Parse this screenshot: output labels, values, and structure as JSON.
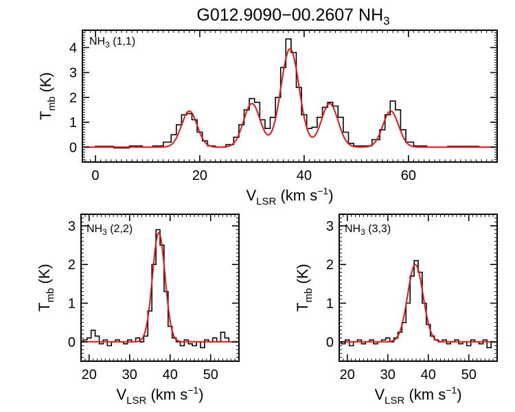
{
  "figure": {
    "title": "G012.9090−00.2607 NH",
    "title_sub": "3"
  },
  "chart_data": [
    {
      "type": "line",
      "id": "p11",
      "label": "NH",
      "label_sub": "3",
      "label_suffix": " (1,1)",
      "xlabel": "V",
      "xlabel_sub": "LSR",
      "xlabel_unit": " (km s",
      "xlabel_sup": "−1",
      "ylabel": "T",
      "ylabel_sub": "mb",
      "ylabel_unit": " (K)",
      "xlim": [
        -2.5,
        77
      ],
      "ylim": [
        -0.6,
        4.7
      ],
      "xticks": [
        0,
        20,
        40,
        60
      ],
      "yticks": [
        0,
        1,
        2,
        3,
        4
      ],
      "dense_ticks": true,
      "series": [
        {
          "kind": "observed",
          "color": "#000000",
          "x": [
            -2,
            2,
            5,
            8,
            10,
            12,
            14,
            15,
            16,
            17,
            18,
            19,
            20,
            21,
            22,
            24,
            26,
            27,
            28,
            29,
            30,
            31,
            32,
            33,
            34,
            35,
            36,
            37,
            38,
            39,
            40,
            41,
            42,
            43,
            44,
            45,
            46,
            47,
            48,
            49,
            50,
            52,
            54,
            55,
            56,
            57,
            58,
            59,
            60,
            62,
            65,
            70,
            77
          ],
          "y": [
            0.0,
            0.03,
            -0.03,
            0.05,
            0.0,
            0.05,
            0.2,
            0.5,
            0.9,
            1.3,
            1.35,
            1.1,
            0.6,
            0.25,
            0.05,
            0.0,
            0.1,
            0.4,
            0.9,
            1.5,
            1.95,
            1.8,
            1.1,
            0.75,
            1.2,
            2.0,
            3.2,
            4.35,
            3.8,
            2.4,
            1.3,
            0.75,
            0.8,
            1.2,
            1.6,
            1.8,
            1.65,
            1.2,
            0.6,
            0.15,
            0.05,
            0.05,
            0.3,
            0.7,
            1.3,
            1.85,
            1.5,
            0.7,
            0.2,
            0.05,
            0.0,
            0.03,
            0.0
          ]
        },
        {
          "kind": "fit",
          "color": "#ee1111",
          "baseline": 0.0,
          "components": [
            {
              "center": 18.0,
              "amplitude": 1.45,
              "sigma": 1.5
            },
            {
              "center": 30.0,
              "amplitude": 1.75,
              "sigma": 1.6
            },
            {
              "center": 37.3,
              "amplitude": 3.95,
              "sigma": 1.75
            },
            {
              "center": 44.9,
              "amplitude": 1.75,
              "sigma": 1.6
            },
            {
              "center": 56.6,
              "amplitude": 1.45,
              "sigma": 1.5
            }
          ]
        }
      ]
    },
    {
      "type": "line",
      "id": "p22",
      "label": "NH",
      "label_sub": "3",
      "label_suffix": " (2,2)",
      "xlabel": "V",
      "xlabel_sub": "LSR",
      "xlabel_unit": " (km s",
      "xlabel_sup": "−1",
      "ylabel": "T",
      "ylabel_sub": "mb",
      "ylabel_unit": " (K)",
      "xlim": [
        18,
        57
      ],
      "ylim": [
        -0.5,
        3.3
      ],
      "xticks": [
        20,
        30,
        40,
        50
      ],
      "yticks": [
        0,
        1,
        2,
        3
      ],
      "dense_ticks": true,
      "series": [
        {
          "kind": "observed",
          "color": "#000000",
          "x": [
            18,
            19,
            20,
            21,
            22,
            23,
            24,
            25,
            26,
            27,
            28,
            29,
            30,
            31,
            32,
            33,
            34,
            35,
            36,
            37,
            38,
            39,
            40,
            41,
            42,
            43,
            44,
            45,
            46,
            47,
            48,
            49,
            50,
            51,
            52,
            53,
            54,
            55,
            56,
            57
          ],
          "y": [
            0.0,
            0.05,
            0.1,
            0.3,
            0.15,
            -0.05,
            0.05,
            -0.1,
            0.0,
            0.05,
            0.0,
            -0.05,
            0.05,
            0.0,
            0.1,
            0.0,
            0.15,
            0.8,
            2.0,
            2.9,
            2.5,
            1.3,
            0.4,
            0.1,
            0.0,
            -0.1,
            0.05,
            -0.05,
            -0.1,
            0.0,
            -0.15,
            0.05,
            0.0,
            0.1,
            0.0,
            0.25,
            0.1,
            0.0,
            0.0,
            0.0
          ]
        },
        {
          "kind": "fit",
          "color": "#ee1111",
          "baseline": 0.0,
          "components": [
            {
              "center": 37.2,
              "amplitude": 2.82,
              "sigma": 1.55
            }
          ]
        }
      ]
    },
    {
      "type": "line",
      "id": "p33",
      "label": "NH",
      "label_sub": "3",
      "label_suffix": " (3,3)",
      "xlabel": "V",
      "xlabel_sub": "LSR",
      "xlabel_unit": " (km s",
      "xlabel_sup": "−1",
      "ylabel": "T",
      "ylabel_sub": "mb",
      "ylabel_unit": " (K)",
      "xlim": [
        18,
        57
      ],
      "ylim": [
        -0.5,
        3.3
      ],
      "xticks": [
        20,
        30,
        40,
        50
      ],
      "yticks": [
        0,
        1,
        2,
        3
      ],
      "dense_ticks": true,
      "series": [
        {
          "kind": "observed",
          "color": "#000000",
          "x": [
            18,
            19,
            20,
            21,
            22,
            23,
            24,
            25,
            26,
            27,
            28,
            29,
            30,
            31,
            32,
            33,
            34,
            35,
            36,
            37,
            38,
            39,
            40,
            41,
            42,
            43,
            44,
            45,
            46,
            47,
            48,
            49,
            50,
            51,
            52,
            53,
            54,
            55,
            56,
            57
          ],
          "y": [
            0.0,
            -0.05,
            0.05,
            -0.1,
            0.0,
            0.05,
            -0.05,
            0.0,
            0.05,
            -0.05,
            0.0,
            0.05,
            0.1,
            0.0,
            0.1,
            0.25,
            0.5,
            1.0,
            1.7,
            2.1,
            1.8,
            1.0,
            0.45,
            0.15,
            0.05,
            0.0,
            0.05,
            -0.05,
            0.0,
            0.05,
            -0.05,
            0.0,
            -0.1,
            0.05,
            0.0,
            -0.05,
            0.05,
            -0.15,
            0.0,
            0.0
          ]
        },
        {
          "kind": "fit",
          "color": "#ee1111",
          "baseline": 0.0,
          "components": [
            {
              "center": 36.8,
              "amplitude": 2.0,
              "sigma": 1.9
            }
          ]
        }
      ]
    }
  ]
}
